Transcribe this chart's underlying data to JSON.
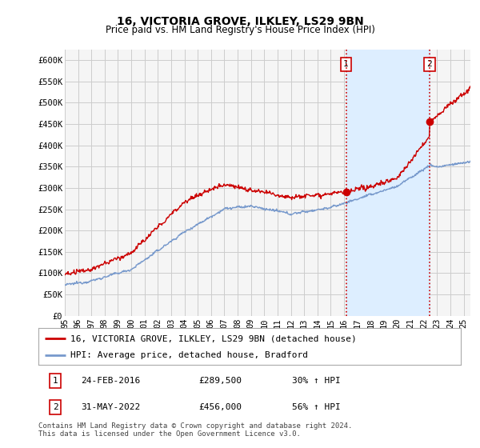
{
  "title": "16, VICTORIA GROVE, ILKLEY, LS29 9BN",
  "subtitle": "Price paid vs. HM Land Registry's House Price Index (HPI)",
  "ylim": [
    0,
    620000
  ],
  "yticks": [
    0,
    50000,
    100000,
    150000,
    200000,
    250000,
    300000,
    350000,
    400000,
    450000,
    500000,
    550000,
    600000
  ],
  "ytick_labels": [
    "£0",
    "£50K",
    "£100K",
    "£150K",
    "£200K",
    "£250K",
    "£300K",
    "£350K",
    "£400K",
    "£450K",
    "£500K",
    "£550K",
    "£600K"
  ],
  "xlim_start": 1995.0,
  "xlim_end": 2025.5,
  "grid_color": "#cccccc",
  "bg_color": "#ffffff",
  "plot_bg_color": "#f5f5f5",
  "shade_color": "#ddeeff",
  "red_color": "#cc0000",
  "blue_color": "#7799cc",
  "transaction1_x": 2016.15,
  "transaction1_y": 289500,
  "transaction2_x": 2022.42,
  "transaction2_y": 456000,
  "vline_color": "#cc0000",
  "legend_label_red": "16, VICTORIA GROVE, ILKLEY, LS29 9BN (detached house)",
  "legend_label_blue": "HPI: Average price, detached house, Bradford",
  "annotation1_date": "24-FEB-2016",
  "annotation1_price": "£289,500",
  "annotation1_hpi": "30% ↑ HPI",
  "annotation2_date": "31-MAY-2022",
  "annotation2_price": "£456,000",
  "annotation2_hpi": "56% ↑ HPI",
  "footer": "Contains HM Land Registry data © Crown copyright and database right 2024.\nThis data is licensed under the Open Government Licence v3.0.",
  "title_fontsize": 10,
  "subtitle_fontsize": 8.5,
  "tick_fontsize": 7.5,
  "legend_fontsize": 8,
  "annotation_fontsize": 8
}
